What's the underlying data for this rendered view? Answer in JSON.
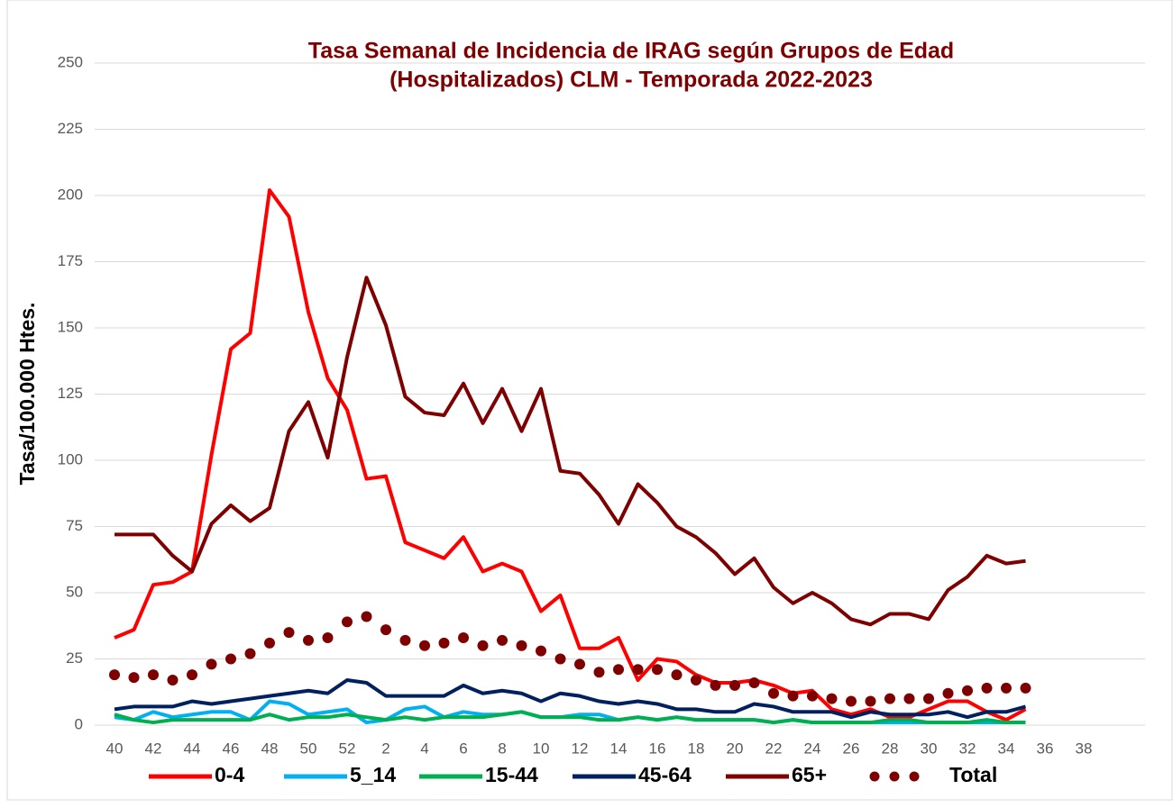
{
  "chart_data": {
    "type": "line",
    "title": [
      "Tasa Semanal de Incidencia de IRAG según Grupos de Edad",
      "(Hospitalizados) CLM - Temporada 2022-2023"
    ],
    "y_label": "Tasa/100.000 Htes.",
    "categories": [
      "40",
      null,
      "42",
      null,
      "44",
      null,
      "46",
      null,
      "48",
      null,
      "50",
      null,
      "52",
      null,
      "2",
      null,
      "4",
      null,
      "6",
      null,
      "8",
      null,
      "10",
      null,
      "12",
      null,
      "14",
      null,
      "16",
      null,
      "18",
      null,
      "20",
      null,
      "22",
      null,
      "24",
      null,
      "26",
      null,
      "28",
      null,
      "30",
      null,
      "32",
      null,
      "34",
      null,
      "36",
      null,
      "38",
      null
    ],
    "ylim": [
      0,
      250
    ],
    "yticks": [
      0,
      25,
      50,
      75,
      100,
      125,
      150,
      175,
      200,
      225,
      250
    ],
    "grid": true,
    "legend": "bottom",
    "series": [
      {
        "name": "0-4",
        "color": "#ff0000",
        "line_style": "solid",
        "values": [
          33,
          36,
          53,
          54,
          58,
          102,
          142,
          148,
          202,
          192,
          156,
          131,
          119,
          93,
          94,
          69,
          66,
          63,
          71,
          58,
          61,
          58,
          43,
          49,
          29,
          29,
          33,
          17,
          25,
          24,
          19,
          16,
          16,
          17,
          15,
          12,
          13,
          6,
          4,
          6,
          3,
          3,
          6,
          9,
          9,
          5,
          2,
          6,
          null,
          null,
          null,
          null
        ]
      },
      {
        "name": "5_14",
        "color": "#00b0f0",
        "line_style": "solid",
        "values": [
          3,
          2,
          5,
          3,
          4,
          5,
          5,
          2,
          9,
          8,
          4,
          5,
          6,
          1,
          2,
          6,
          7,
          3,
          5,
          4,
          4,
          5,
          3,
          3,
          4,
          4,
          2,
          3,
          2,
          3,
          2,
          2,
          2,
          2,
          1,
          2,
          1,
          1,
          1,
          1,
          1,
          1,
          1,
          1,
          1,
          1,
          1,
          1,
          null,
          null,
          null,
          null
        ]
      },
      {
        "name": "15-44",
        "color": "#00b050",
        "line_style": "solid",
        "values": [
          4,
          2,
          1,
          2,
          2,
          2,
          2,
          2,
          4,
          2,
          3,
          3,
          4,
          3,
          2,
          3,
          2,
          3,
          3,
          3,
          4,
          5,
          3,
          3,
          3,
          2,
          2,
          3,
          2,
          3,
          2,
          2,
          2,
          2,
          1,
          2,
          1,
          1,
          1,
          1,
          2,
          2,
          1,
          1,
          1,
          2,
          1,
          1,
          null,
          null,
          null,
          null
        ]
      },
      {
        "name": "45-64",
        "color": "#002060",
        "line_style": "solid",
        "values": [
          6,
          7,
          7,
          7,
          9,
          8,
          9,
          10,
          11,
          12,
          13,
          12,
          17,
          16,
          11,
          11,
          11,
          11,
          15,
          12,
          13,
          12,
          9,
          12,
          11,
          9,
          8,
          9,
          8,
          6,
          6,
          5,
          5,
          8,
          7,
          5,
          5,
          5,
          3,
          5,
          4,
          4,
          4,
          5,
          3,
          5,
          5,
          7,
          null,
          null,
          null,
          null
        ]
      },
      {
        "name": "65+",
        "color": "#7f0000",
        "line_style": "solid",
        "values": [
          72,
          72,
          72,
          64,
          58,
          76,
          83,
          77,
          82,
          111,
          122,
          101,
          139,
          169,
          151,
          124,
          118,
          117,
          129,
          114,
          127,
          111,
          127,
          96,
          95,
          87,
          76,
          91,
          84,
          75,
          71,
          65,
          57,
          63,
          52,
          46,
          50,
          46,
          40,
          38,
          42,
          42,
          40,
          51,
          56,
          64,
          61,
          62,
          null,
          null,
          null,
          null
        ]
      },
      {
        "name": "Total",
        "color": "#7f0000",
        "line_style": "dotted",
        "values": [
          19,
          18,
          19,
          17,
          19,
          23,
          25,
          27,
          31,
          35,
          32,
          33,
          39,
          41,
          36,
          32,
          30,
          31,
          33,
          30,
          32,
          30,
          28,
          25,
          23,
          20,
          21,
          21,
          21,
          19,
          17,
          15,
          15,
          16,
          12,
          11,
          11,
          10,
          9,
          9,
          10,
          10,
          10,
          12,
          13,
          14,
          14,
          14,
          null,
          null,
          null,
          null
        ]
      }
    ]
  }
}
